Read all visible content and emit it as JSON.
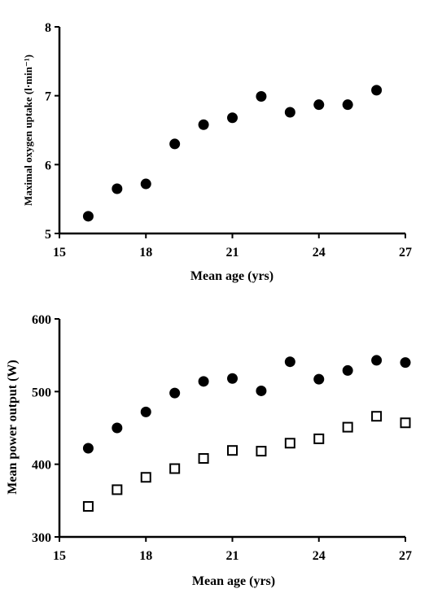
{
  "chart_data": [
    {
      "type": "scatter",
      "title": "",
      "xlabel": "Mean age (yrs)",
      "ylabel": "Maximal oxygen uptake (l·min⁻¹)",
      "xlim": [
        15,
        27
      ],
      "ylim": [
        5,
        8
      ],
      "xticks": [
        "15",
        "18",
        "21",
        "24",
        "27"
      ],
      "yticks": [
        "5",
        "6",
        "7",
        "8"
      ],
      "grid": false,
      "legend": "none",
      "series": [
        {
          "marker": "filled-circle",
          "x": [
            16,
            17,
            18,
            19,
            20,
            21,
            22,
            23,
            24,
            25,
            26
          ],
          "y": [
            5.25,
            5.65,
            5.72,
            6.3,
            6.58,
            6.68,
            6.99,
            6.76,
            6.87,
            6.87,
            7.08
          ]
        }
      ]
    },
    {
      "type": "scatter",
      "title": "",
      "xlabel": "Mean age (yrs)",
      "ylabel": "Mean power output  (W)",
      "xlim": [
        15,
        27
      ],
      "ylim": [
        300,
        600
      ],
      "xticks": [
        "15",
        "18",
        "21",
        "24",
        "27"
      ],
      "yticks": [
        "300",
        "400",
        "500",
        "600"
      ],
      "grid": false,
      "legend": "none",
      "series": [
        {
          "marker": "filled-circle",
          "x": [
            16,
            17,
            18,
            19,
            20,
            21,
            22,
            23,
            24,
            25,
            26,
            27
          ],
          "y": [
            422,
            450,
            472,
            498,
            514,
            518,
            501,
            541,
            517,
            529,
            543,
            540
          ]
        },
        {
          "marker": "open-square",
          "x": [
            16,
            17,
            18,
            19,
            20,
            21,
            22,
            23,
            24,
            25,
            26,
            27
          ],
          "y": [
            342,
            365,
            382,
            394,
            408,
            419,
            418,
            429,
            435,
            451,
            466,
            457
          ]
        }
      ]
    }
  ]
}
